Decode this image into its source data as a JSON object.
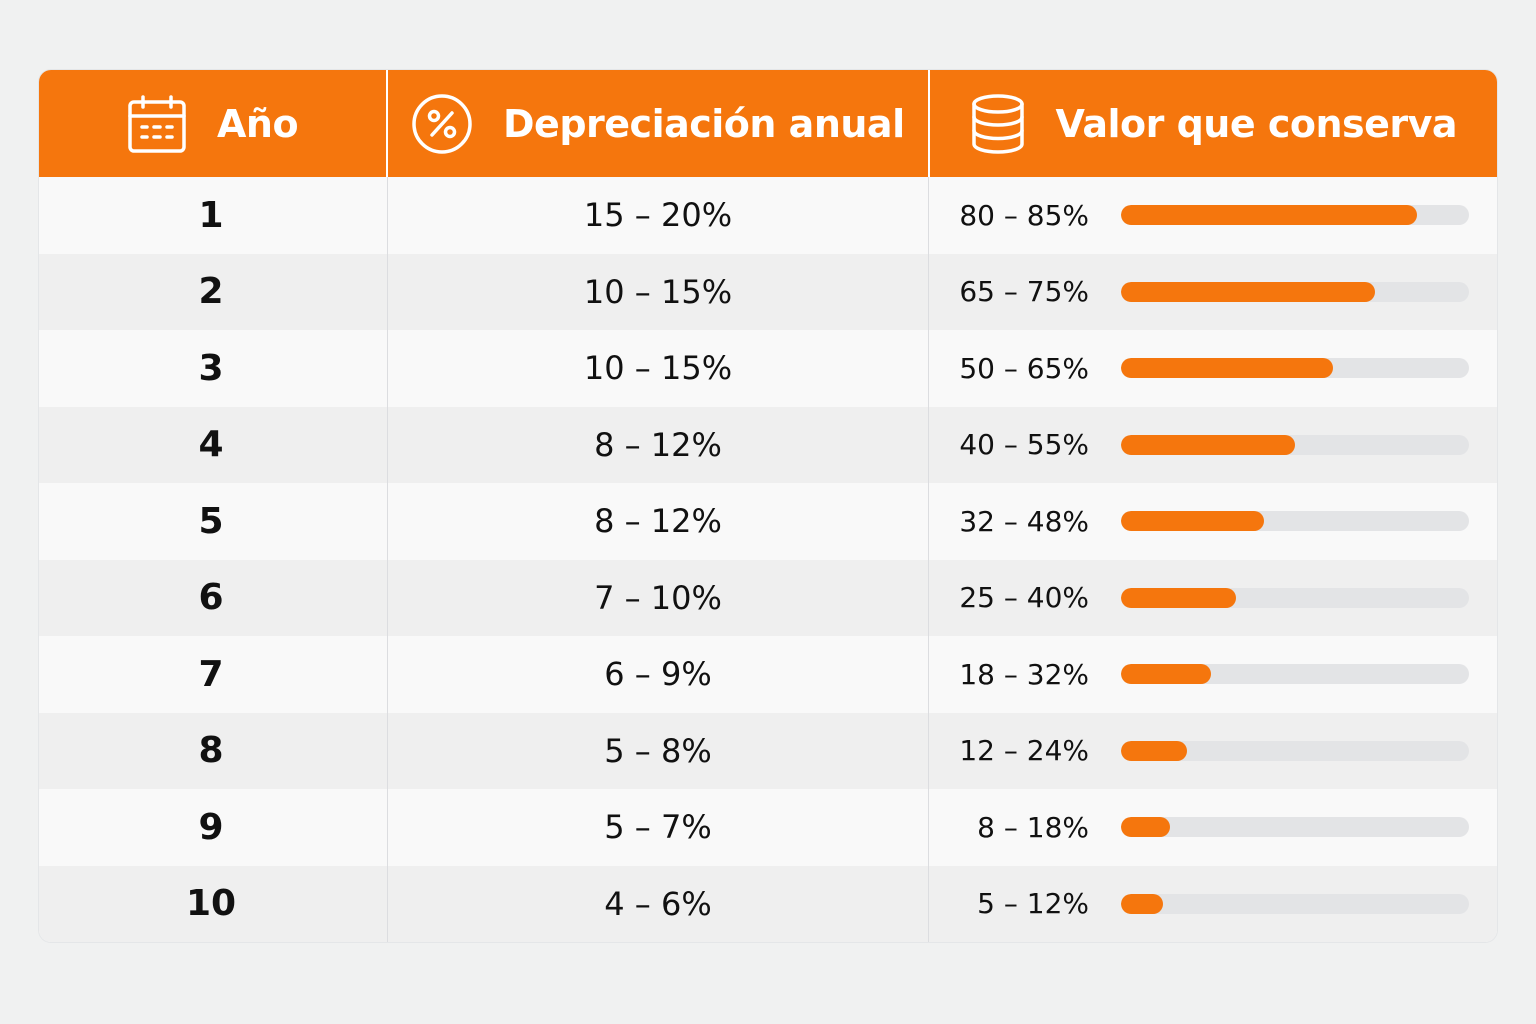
{
  "header": {
    "col_year": "Año",
    "col_depreciation": "Depreciación anual",
    "col_value": "Valor que conserva",
    "icons": [
      "calendar-icon",
      "percent-circle-icon",
      "coin-stack-icon"
    ],
    "accent_color": "#f5760d"
  },
  "rows": [
    {
      "year": "1",
      "depreciation": "15 – 20%",
      "value": "80 – 85%",
      "bar_percent": 85
    },
    {
      "year": "2",
      "depreciation": "10 – 15%",
      "value": "65 – 75%",
      "bar_percent": 73
    },
    {
      "year": "3",
      "depreciation": "10 – 15%",
      "value": "50 – 65%",
      "bar_percent": 61
    },
    {
      "year": "4",
      "depreciation": "8 – 12%",
      "value": "40 – 55%",
      "bar_percent": 50
    },
    {
      "year": "5",
      "depreciation": "8 – 12%",
      "value": "32 – 48%",
      "bar_percent": 41
    },
    {
      "year": "6",
      "depreciation": "7 – 10%",
      "value": "25 – 40%",
      "bar_percent": 33
    },
    {
      "year": "7",
      "depreciation": "6 – 9%",
      "value": "18 – 32%",
      "bar_percent": 26
    },
    {
      "year": "8",
      "depreciation": "5 – 8%",
      "value": "12 – 24%",
      "bar_percent": 19
    },
    {
      "year": "9",
      "depreciation": "5 – 7%",
      "value": "8 – 18%",
      "bar_percent": 14
    },
    {
      "year": "10",
      "depreciation": "4 – 6%",
      "value": "5 – 12%",
      "bar_percent": 12
    }
  ]
}
